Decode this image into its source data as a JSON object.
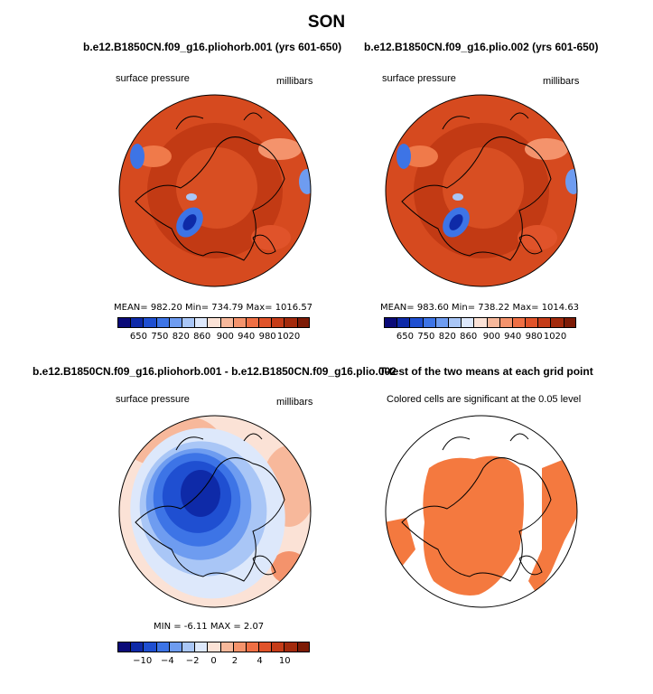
{
  "title": "SON",
  "panels": [
    {
      "title": "b.e12.B1850CN.f09_g16.pliohorb.001 (yrs 601-650)",
      "left_label": "surface pressure",
      "right_label": "millibars",
      "stats": "MEAN= 982.20   Min= 734.79   Max= 1016.57"
    },
    {
      "title": "b.e12.B1850CN.f09_g16.plio.002 (yrs 601-650)",
      "left_label": "surface pressure",
      "right_label": "millibars",
      "stats": "MEAN= 983.60   Min= 738.22   Max= 1014.63"
    },
    {
      "title": "b.e12.B1850CN.f09_g16.pliohorb.001 - b.e12.B1850CN.f09_g16.plio.002",
      "left_label": "surface pressure",
      "right_label": "millibars",
      "stats": "MIN =   -6.11  MAX =    2.07"
    },
    {
      "title": "T-test of the two means at each grid point",
      "left_label": "Colored cells are significant at the 0.05 level"
    }
  ],
  "colorbar_top": {
    "colors": [
      "#0a0a78",
      "#0e2aa8",
      "#1f4fd1",
      "#3d74e6",
      "#6e9cf0",
      "#a9c6f6",
      "#dde8fb",
      "#fbe2d6",
      "#f7b89b",
      "#f4936c",
      "#ef6f44",
      "#e0532a",
      "#c53c18",
      "#a32a0c",
      "#7d1b06"
    ],
    "tick_labels": [
      "650",
      "750",
      "820",
      "860",
      "900",
      "940",
      "980",
      "1020"
    ]
  },
  "colorbar_diff": {
    "colors": [
      "#0a0a78",
      "#0e2aa8",
      "#1f4fd1",
      "#3d74e6",
      "#6e9cf0",
      "#a9c6f6",
      "#dde8fb",
      "#fbe2d6",
      "#f7b89b",
      "#f4936c",
      "#ef6f44",
      "#e0532a",
      "#c53c18",
      "#a32a0c",
      "#7d1b06"
    ],
    "tick_labels": [
      "−10",
      "−4",
      "−2",
      "0",
      "2",
      "4",
      "10"
    ]
  },
  "chart_data": [
    {
      "type": "heatmap",
      "projection": "polar stereographic (Northern Hemisphere)",
      "variable": "surface pressure",
      "units": "millibars",
      "season": "SON",
      "case": "b.e12.B1850CN.f09_g16.pliohorb.001",
      "years": "601-650",
      "mean": 982.2,
      "min": 734.79,
      "max": 1016.57,
      "colorbar_ticks": [
        650,
        750,
        820,
        860,
        900,
        940,
        980,
        1020
      ]
    },
    {
      "type": "heatmap",
      "projection": "polar stereographic (Northern Hemisphere)",
      "variable": "surface pressure",
      "units": "millibars",
      "season": "SON",
      "case": "b.e12.B1850CN.f09_g16.plio.002",
      "years": "601-650",
      "mean": 983.6,
      "min": 738.22,
      "max": 1014.63,
      "colorbar_ticks": [
        650,
        750,
        820,
        860,
        900,
        940,
        980,
        1020
      ]
    },
    {
      "type": "heatmap",
      "projection": "polar stereographic (Northern Hemisphere)",
      "variable": "surface pressure difference",
      "units": "millibars",
      "season": "SON",
      "min": -6.11,
      "max": 2.07,
      "colorbar_ticks": [
        -10,
        -4,
        -2,
        0,
        2,
        4,
        10
      ]
    },
    {
      "type": "heatmap",
      "projection": "polar stereographic (Northern Hemisphere)",
      "variable": "t-test significance",
      "significance_level": 0.05
    }
  ]
}
